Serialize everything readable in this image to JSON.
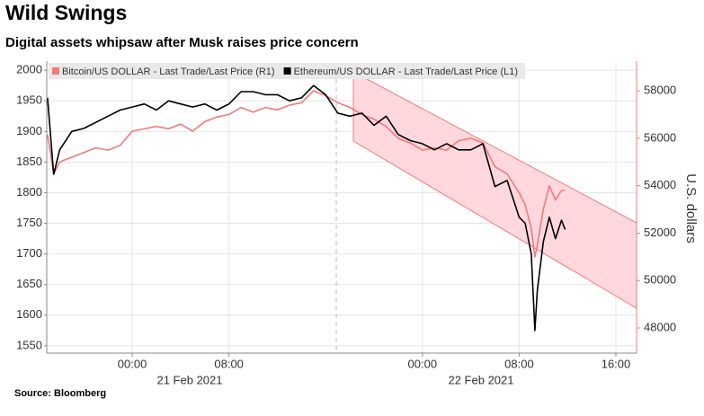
{
  "chart_data": {
    "type": "line",
    "title": "Wild Swings",
    "subtitle": "Digital assets whipsaw after Musk raises price concern",
    "y2_label": "U.S. dollars",
    "source": "Source: Bloomberg",
    "date_labels": [
      "21 Feb 2021",
      "22 Feb 2021"
    ],
    "x": [
      -7,
      -6.5,
      -6,
      -5,
      -4,
      -3,
      -2,
      -1,
      0,
      1,
      2,
      3,
      4,
      5,
      6,
      7,
      8,
      9,
      10,
      11,
      12,
      13,
      14,
      15,
      16,
      17,
      18,
      19,
      20,
      21,
      22,
      23,
      24,
      25,
      26,
      27,
      28,
      29,
      30,
      31,
      32,
      32.5,
      33,
      33.3,
      33.5,
      34,
      34.5,
      35,
      35.5,
      35.8
    ],
    "xlim": [
      -7.07,
      41.71
    ],
    "xticks": [
      {
        "value": 0,
        "label": "00:00"
      },
      {
        "value": 8,
        "label": "08:00"
      },
      {
        "value": 24,
        "label": "00:00"
      },
      {
        "value": 32,
        "label": "08:00"
      },
      {
        "value": 40,
        "label": "16:00"
      }
    ],
    "ylim": [
      1538,
      2012
    ],
    "yticks": [
      1550,
      1600,
      1650,
      1700,
      1750,
      1800,
      1850,
      1900,
      1950,
      2000
    ],
    "y2lim": [
      46940,
      59180
    ],
    "y2ticks": [
      48000,
      50000,
      52000,
      54000,
      56000,
      58000
    ],
    "grid": true,
    "legend": "top",
    "series": [
      {
        "name": "Bitcoin/US DOLLAR - Last Trade/Last Price (R1)",
        "color": "#f07a7a",
        "axis": "y2",
        "values": [
          56140,
          54500,
          55000,
          55200,
          55400,
          55600,
          55500,
          55700,
          56300,
          56400,
          56500,
          56400,
          56600,
          56300,
          56700,
          56900,
          57000,
          57300,
          57100,
          57300,
          57200,
          57400,
          57500,
          58000,
          57800,
          57500,
          57300,
          57000,
          56800,
          56500,
          56000,
          55800,
          55500,
          55600,
          55500,
          55900,
          56000,
          55800,
          54800,
          54500,
          53700,
          53200,
          52200,
          51000,
          51500,
          53000,
          54000,
          53400,
          53800,
          53800
        ]
      },
      {
        "name": "Ethereum/US DOLLAR - Last Trade/Last Price (L1)",
        "color": "#000000",
        "values": [
          1955,
          1830,
          1870,
          1900,
          1905,
          1915,
          1925,
          1935,
          1940,
          1945,
          1935,
          1950,
          1945,
          1940,
          1945,
          1935,
          1945,
          1965,
          1965,
          1960,
          1960,
          1950,
          1955,
          1975,
          1960,
          1930,
          1925,
          1930,
          1910,
          1925,
          1895,
          1885,
          1880,
          1870,
          1880,
          1870,
          1870,
          1880,
          1810,
          1820,
          1760,
          1750,
          1700,
          1575,
          1640,
          1720,
          1760,
          1725,
          1755,
          1740
        ]
      }
    ]
  }
}
